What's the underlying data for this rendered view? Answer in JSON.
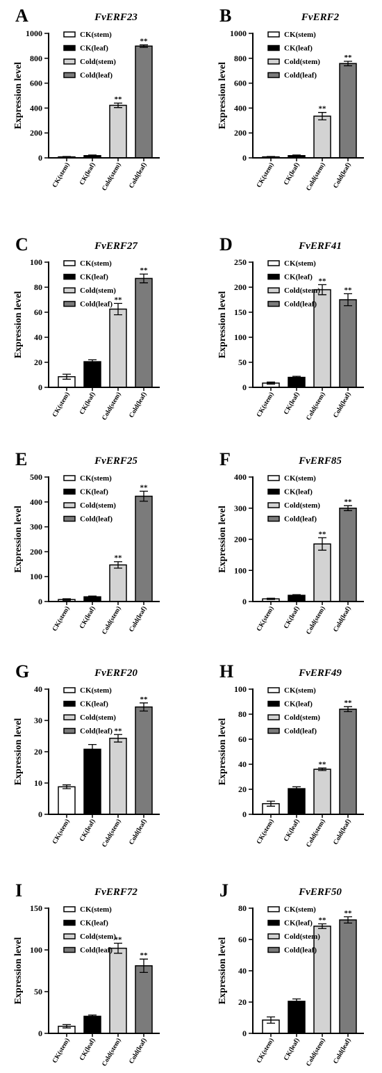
{
  "figure": {
    "categories": [
      "CK(stem)",
      "CK(leaf)",
      "Cold(stem)",
      "Cold(leaf)"
    ],
    "legend": [
      "CK(stem)",
      "CK(leaf)",
      "Cold(stem)",
      "Cold(leaf)"
    ],
    "ylabel": "Expression level",
    "bar_colors": [
      "#ffffff",
      "#000000",
      "#d3d3d3",
      "#7b7b7b"
    ],
    "significance_mark": "**"
  },
  "chart_data": [
    {
      "panel": "A",
      "type": "bar",
      "title": "FvERF23",
      "ylabel": "Expression level",
      "ylim": [
        0,
        1000
      ],
      "yticks": [
        0,
        200,
        400,
        600,
        800,
        1000
      ],
      "categories": [
        "CK(stem)",
        "CK(leaf)",
        "Cold(stem)",
        "Cold(leaf)"
      ],
      "values": [
        8,
        18,
        422,
        898
      ],
      "errors": [
        3,
        5,
        18,
        10
      ],
      "significance": [
        "",
        "",
        "**",
        "**"
      ]
    },
    {
      "panel": "B",
      "type": "bar",
      "title": "FvERF2",
      "ylabel": "Expression level",
      "ylim": [
        0,
        1000
      ],
      "yticks": [
        0,
        200,
        400,
        600,
        800,
        1000
      ],
      "categories": [
        "CK(stem)",
        "CK(leaf)",
        "Cold(stem)",
        "Cold(leaf)"
      ],
      "values": [
        8,
        18,
        335,
        758
      ],
      "errors": [
        3,
        5,
        30,
        18
      ],
      "significance": [
        "",
        "",
        "**",
        "**"
      ]
    },
    {
      "panel": "C",
      "type": "bar",
      "title": "FvERF27",
      "ylabel": "Expression level",
      "ylim": [
        0,
        100
      ],
      "yticks": [
        0,
        20,
        40,
        60,
        80,
        100
      ],
      "categories": [
        "CK(stem)",
        "CK(leaf)",
        "Cold(stem)",
        "Cold(leaf)"
      ],
      "values": [
        8.5,
        20.5,
        62.5,
        87
      ],
      "errors": [
        2,
        1.5,
        4.5,
        3.5
      ],
      "significance": [
        "",
        "",
        "**",
        "**"
      ]
    },
    {
      "panel": "D",
      "type": "bar",
      "title": "FvERF41",
      "ylabel": "Expression level",
      "ylim": [
        0,
        250
      ],
      "yticks": [
        0,
        50,
        100,
        150,
        200,
        250
      ],
      "categories": [
        "CK(stem)",
        "CK(leaf)",
        "Cold(stem)",
        "Cold(leaf)"
      ],
      "values": [
        8.5,
        20,
        195,
        175
      ],
      "errors": [
        2,
        2,
        10,
        12
      ],
      "significance": [
        "",
        "",
        "**",
        "**"
      ]
    },
    {
      "panel": "E",
      "type": "bar",
      "title": "FvERF25",
      "ylabel": "Expression level",
      "ylim": [
        0,
        500
      ],
      "yticks": [
        0,
        100,
        200,
        300,
        400,
        500
      ],
      "categories": [
        "CK(stem)",
        "CK(leaf)",
        "Cold(stem)",
        "Cold(leaf)"
      ],
      "values": [
        8,
        19,
        147,
        423
      ],
      "errors": [
        3,
        3,
        13,
        20
      ],
      "significance": [
        "",
        "",
        "**",
        "**"
      ]
    },
    {
      "panel": "F",
      "type": "bar",
      "title": "FvERF85",
      "ylabel": "Expression level",
      "ylim": [
        0,
        400
      ],
      "yticks": [
        0,
        100,
        200,
        300,
        400
      ],
      "categories": [
        "CK(stem)",
        "CK(leaf)",
        "Cold(stem)",
        "Cold(leaf)"
      ],
      "values": [
        8.5,
        20,
        185,
        300
      ],
      "errors": [
        2,
        2,
        20,
        8
      ],
      "significance": [
        "",
        "",
        "**",
        "**"
      ]
    },
    {
      "panel": "G",
      "type": "bar",
      "title": "FvERF20",
      "ylabel": "Expression level",
      "ylim": [
        0,
        40
      ],
      "yticks": [
        0,
        10,
        20,
        30,
        40
      ],
      "categories": [
        "CK(stem)",
        "CK(leaf)",
        "Cold(stem)",
        "Cold(leaf)"
      ],
      "values": [
        8.8,
        20.8,
        24.3,
        34.3
      ],
      "errors": [
        0.6,
        1.5,
        1.2,
        1.3
      ],
      "significance": [
        "",
        "",
        "**",
        "**"
      ]
    },
    {
      "panel": "H",
      "type": "bar",
      "title": "FvERF49",
      "ylabel": "Expression level",
      "ylim": [
        0,
        100
      ],
      "yticks": [
        0,
        20,
        40,
        60,
        80,
        100
      ],
      "categories": [
        "CK(stem)",
        "CK(leaf)",
        "Cold(stem)",
        "Cold(leaf)"
      ],
      "values": [
        8.5,
        20.5,
        36,
        84
      ],
      "errors": [
        2,
        1.5,
        1,
        2
      ],
      "significance": [
        "",
        "",
        "**",
        "**"
      ]
    },
    {
      "panel": "I",
      "type": "bar",
      "title": "FvERF72",
      "ylabel": "Expression level",
      "ylim": [
        0,
        150
      ],
      "yticks": [
        0,
        50,
        100,
        150
      ],
      "categories": [
        "CK(stem)",
        "CK(leaf)",
        "Cold(stem)",
        "Cold(leaf)"
      ],
      "values": [
        8.5,
        20.5,
        102,
        81
      ],
      "errors": [
        2,
        1.5,
        6,
        8
      ],
      "significance": [
        "",
        "",
        "**",
        "**"
      ]
    },
    {
      "panel": "J",
      "type": "bar",
      "title": "FvERF50",
      "ylabel": "Expression level",
      "ylim": [
        0,
        80
      ],
      "yticks": [
        0,
        20,
        40,
        60,
        80
      ],
      "categories": [
        "CK(stem)",
        "CK(leaf)",
        "Cold(stem)",
        "Cold(leaf)"
      ],
      "values": [
        8.5,
        20.5,
        68.5,
        72.5
      ],
      "errors": [
        2,
        1.5,
        1.5,
        2
      ],
      "significance": [
        "",
        "",
        "**",
        "**"
      ]
    }
  ]
}
